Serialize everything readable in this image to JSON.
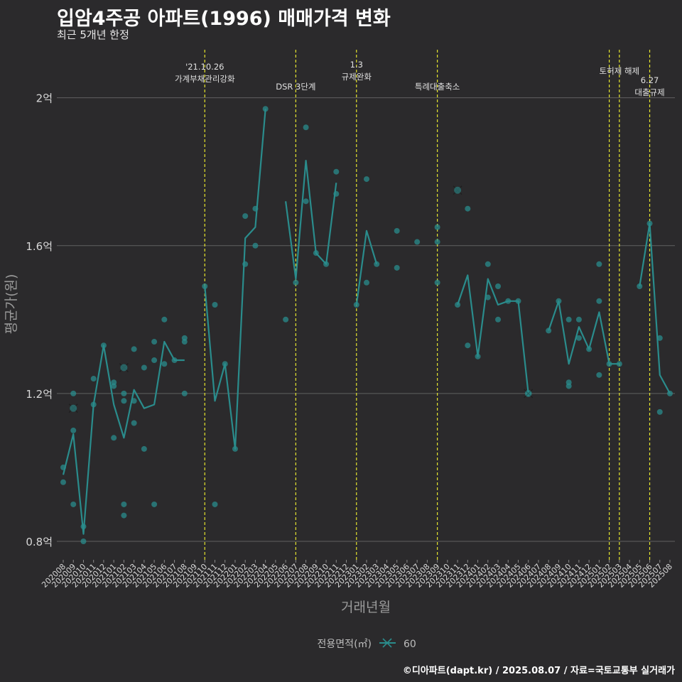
{
  "chart_data": {
    "type": "line",
    "title": "입암4주공 아파트(1996) 매매가격 변화",
    "subtitle": "최근 5개년 한정",
    "xlabel": "거래년월",
    "ylabel": "평균가(원)",
    "caption": "©디아파트(dapt.kr) / 2025.08.07 / 자료=국토교통부 실거래가",
    "legend": {
      "title": "전용면적(㎡)",
      "position": "bottom",
      "entries": [
        "60"
      ]
    },
    "colors": {
      "series": "#2a8c8c",
      "event_line": "#e6e62e",
      "grid": "#606060",
      "background": "#2b2a2c"
    },
    "ylim": [
      0.75,
      2.13
    ],
    "y_ticks": [
      {
        "value": 0.8,
        "label": "0.8억"
      },
      {
        "value": 1.2,
        "label": "1.2억"
      },
      {
        "value": 1.6,
        "label": "1.6억"
      },
      {
        "value": 2.0,
        "label": "2억"
      }
    ],
    "grid": true,
    "x_categories": [
      "202008",
      "202009",
      "202010",
      "202011",
      "202012",
      "202101",
      "202102",
      "202103",
      "202104",
      "202105",
      "202106",
      "202107",
      "202108",
      "202109",
      "202110",
      "202111",
      "202112",
      "202201",
      "202202",
      "202203",
      "202204",
      "202205",
      "202206",
      "202207",
      "202208",
      "202209",
      "202210",
      "202211",
      "202212",
      "202301",
      "202302",
      "202303",
      "202304",
      "202305",
      "202306",
      "202307",
      "202308",
      "202309",
      "202310",
      "202311",
      "202312",
      "202401",
      "202402",
      "202403",
      "202404",
      "202405",
      "202406",
      "202407",
      "202408",
      "202409",
      "202410",
      "202411",
      "202412",
      "202501",
      "202502",
      "202503",
      "202504",
      "202505",
      "202506",
      "202507",
      "202508"
    ],
    "series": [
      {
        "name": "60",
        "line_segments": [
          [
            [
              "202008",
              0.98
            ],
            [
              "202009",
              1.09
            ],
            [
              "202010",
              0.82
            ],
            [
              "202011",
              1.17
            ],
            [
              "202012",
              1.33
            ],
            [
              "202101",
              1.17
            ],
            [
              "202102",
              1.08
            ],
            [
              "202103",
              1.21
            ],
            [
              "202104",
              1.16
            ],
            [
              "202105",
              1.17
            ],
            [
              "202106",
              1.34
            ],
            [
              "202107",
              1.29
            ],
            [
              "202108",
              1.29
            ]
          ],
          [
            [
              "202110",
              1.49
            ],
            [
              "202111",
              1.18
            ],
            [
              "202112",
              1.28
            ],
            [
              "202201",
              1.05
            ],
            [
              "202202",
              1.62
            ],
            [
              "202203",
              1.65
            ],
            [
              "202204",
              1.97
            ]
          ],
          [
            [
              "202206",
              1.72
            ],
            [
              "202207",
              1.51
            ],
            [
              "202208",
              1.83
            ],
            [
              "202209",
              1.58
            ],
            [
              "202210",
              1.55
            ],
            [
              "202211",
              1.77
            ]
          ],
          [
            [
              "202301",
              1.44
            ],
            [
              "202302",
              1.64
            ],
            [
              "202303",
              1.55
            ]
          ],
          [
            [
              "202311",
              1.44
            ],
            [
              "202312",
              1.52
            ],
            [
              "202401",
              1.3
            ],
            [
              "202402",
              1.51
            ],
            [
              "202403",
              1.44
            ],
            [
              "202404",
              1.45
            ],
            [
              "202405",
              1.45
            ],
            [
              "202406",
              1.2
            ]
          ],
          [
            [
              "202408",
              1.37
            ],
            [
              "202409",
              1.45
            ],
            [
              "202410",
              1.28
            ],
            [
              "202411",
              1.38
            ],
            [
              "202412",
              1.32
            ],
            [
              "202501",
              1.42
            ],
            [
              "202502",
              1.28
            ],
            [
              "202503",
              1.28
            ]
          ],
          [
            [
              "202505",
              1.49
            ],
            [
              "202506",
              1.66
            ],
            [
              "202507",
              1.25
            ],
            [
              "202508",
              1.2
            ]
          ]
        ],
        "points": [
          [
            "202008",
            1.0
          ],
          [
            "202008",
            0.96
          ],
          [
            "202009",
            1.2
          ],
          [
            "202009",
            1.1
          ],
          [
            "202009",
            0.9
          ],
          [
            "202010",
            0.84
          ],
          [
            "202010",
            0.8
          ],
          [
            "202011",
            1.17
          ],
          [
            "202011",
            1.24
          ],
          [
            "202012",
            1.33
          ],
          [
            "202101",
            1.22
          ],
          [
            "202101",
            1.23
          ],
          [
            "202101",
            1.08
          ],
          [
            "202102",
            1.2
          ],
          [
            "202102",
            1.18
          ],
          [
            "202102",
            0.9
          ],
          [
            "202102",
            0.87
          ],
          [
            "202103",
            1.32
          ],
          [
            "202103",
            1.18
          ],
          [
            "202103",
            1.12
          ],
          [
            "202104",
            1.27
          ],
          [
            "202104",
            1.05
          ],
          [
            "202105",
            1.34
          ],
          [
            "202105",
            1.29
          ],
          [
            "202105",
            0.9
          ],
          [
            "202106",
            1.4
          ],
          [
            "202106",
            1.28
          ],
          [
            "202107",
            1.29
          ],
          [
            "202108",
            1.35
          ],
          [
            "202108",
            1.34
          ],
          [
            "202108",
            1.2
          ],
          [
            "202110",
            1.49
          ],
          [
            "202111",
            1.44
          ],
          [
            "202111",
            0.9
          ],
          [
            "202112",
            1.28
          ],
          [
            "202201",
            1.05
          ],
          [
            "202202",
            1.68
          ],
          [
            "202202",
            1.55
          ],
          [
            "202203",
            1.7
          ],
          [
            "202203",
            1.6
          ],
          [
            "202204",
            1.97
          ],
          [
            "202206",
            1.4
          ],
          [
            "202207",
            1.5
          ],
          [
            "202208",
            1.92
          ],
          [
            "202208",
            1.72
          ],
          [
            "202209",
            1.58
          ],
          [
            "202210",
            1.55
          ],
          [
            "202211",
            1.8
          ],
          [
            "202211",
            1.74
          ],
          [
            "202301",
            1.44
          ],
          [
            "202302",
            1.78
          ],
          [
            "202302",
            1.5
          ],
          [
            "202303",
            1.55
          ],
          [
            "202305",
            1.64
          ],
          [
            "202305",
            1.54
          ],
          [
            "202307",
            1.61
          ],
          [
            "202309",
            1.65
          ],
          [
            "202309",
            1.61
          ],
          [
            "202309",
            1.5
          ],
          [
            "202311",
            1.44
          ],
          [
            "202312",
            1.7
          ],
          [
            "202312",
            1.33
          ],
          [
            "202401",
            1.3
          ],
          [
            "202402",
            1.55
          ],
          [
            "202402",
            1.46
          ],
          [
            "202403",
            1.49
          ],
          [
            "202403",
            1.4
          ],
          [
            "202404",
            1.45
          ],
          [
            "202405",
            1.45
          ],
          [
            "202406",
            1.2
          ],
          [
            "202408",
            1.37
          ],
          [
            "202409",
            1.45
          ],
          [
            "202410",
            1.4
          ],
          [
            "202410",
            1.23
          ],
          [
            "202410",
            1.22
          ],
          [
            "202411",
            1.4
          ],
          [
            "202411",
            1.35
          ],
          [
            "202412",
            1.32
          ],
          [
            "202501",
            1.55
          ],
          [
            "202501",
            1.45
          ],
          [
            "202501",
            1.25
          ],
          [
            "202502",
            1.28
          ],
          [
            "202503",
            1.28
          ],
          [
            "202505",
            1.49
          ],
          [
            "202506",
            1.66
          ],
          [
            "202507",
            1.35
          ],
          [
            "202507",
            1.15
          ],
          [
            "202508",
            1.2
          ]
        ],
        "x_markers": [
          [
            "202009",
            1.16
          ],
          [
            "202102",
            1.27
          ],
          [
            "202311",
            1.75
          ],
          [
            "202406",
            1.2
          ]
        ]
      }
    ],
    "events": [
      {
        "x": "202110",
        "lines": [
          "'21.10.26",
          "가계부채관리강화"
        ]
      },
      {
        "x": "202207",
        "lines": [
          "DSR 3단계"
        ]
      },
      {
        "x": "202301",
        "lines": [
          "1.3",
          "규제완화"
        ]
      },
      {
        "x": "202309",
        "lines": [
          "특례대출축소"
        ]
      },
      {
        "x": "202502",
        "lines": []
      },
      {
        "x": "202503",
        "lines": [
          "토허제 해제"
        ]
      },
      {
        "x": "202506",
        "lines": [
          "6.27",
          "대출규제"
        ]
      }
    ]
  }
}
